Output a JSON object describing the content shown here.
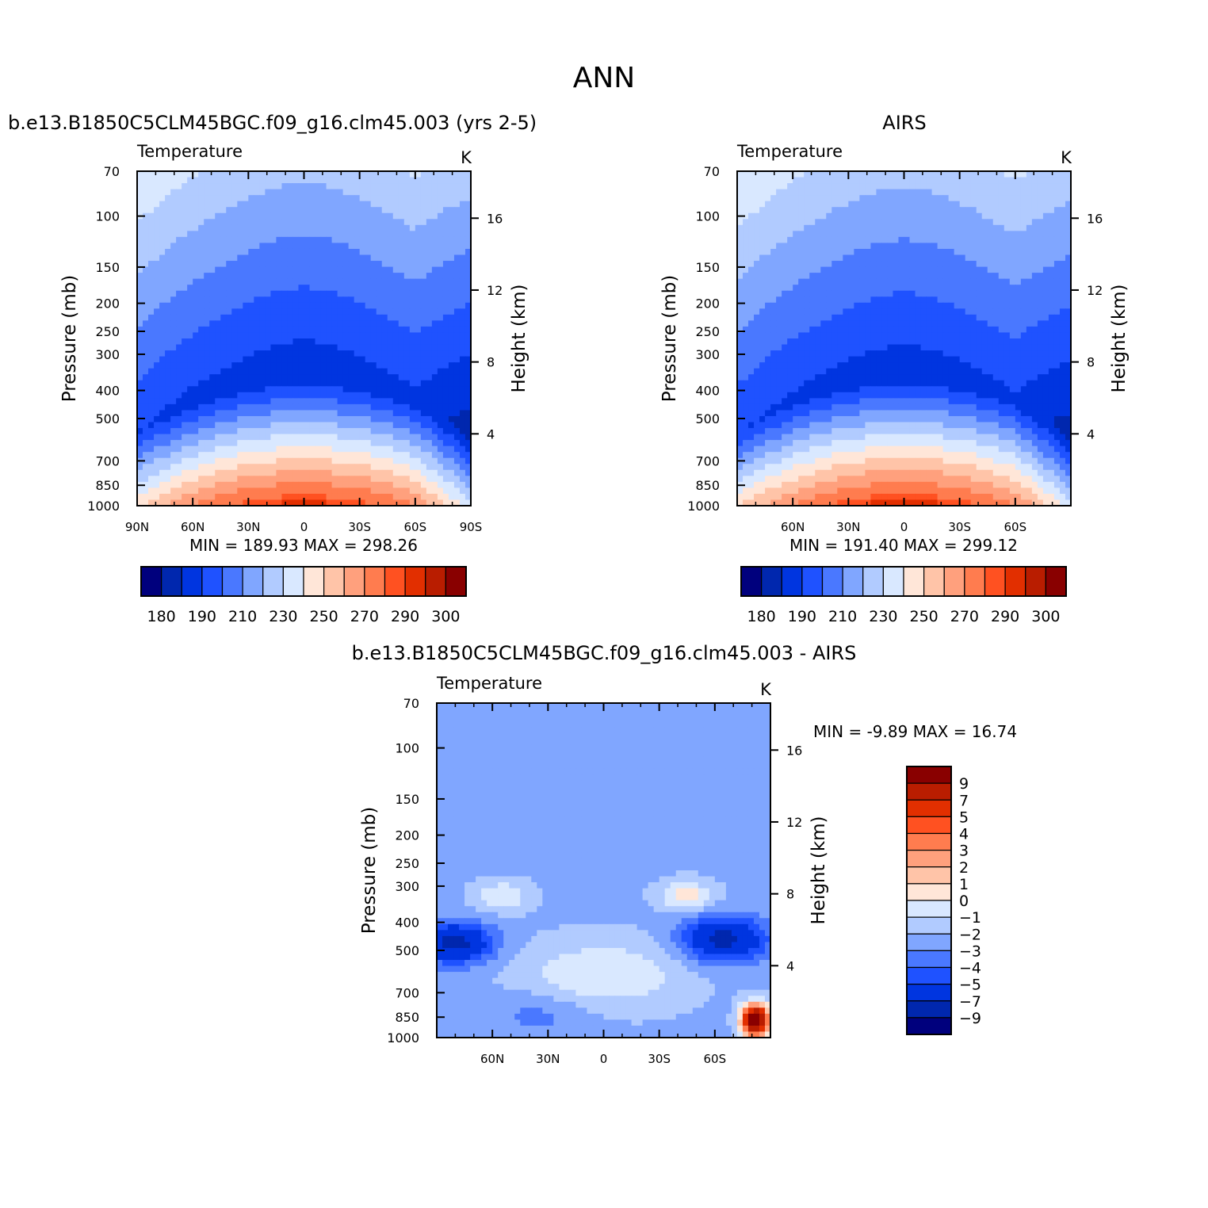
{
  "page_title": "ANN",
  "colors": {
    "abs": [
      "#00007d",
      "#0027ae",
      "#0035e0",
      "#1f52ff",
      "#4a78ff",
      "#80a6ff",
      "#b1cbff",
      "#d9e8ff",
      "#ffe6d8",
      "#ffc4a8",
      "#ffa07d",
      "#ff7c4f",
      "#ff5121",
      "#e22f00",
      "#b91d00",
      "#890000"
    ],
    "diff": [
      "#00007d",
      "#0027ae",
      "#0035e0",
      "#1f52ff",
      "#4a78ff",
      "#80a6ff",
      "#b1cbff",
      "#d9e8ff",
      "#ffe6d8",
      "#ffc4a8",
      "#ffa07d",
      "#ff7c4f",
      "#ff5121",
      "#e22f00",
      "#b91d00",
      "#890000"
    ]
  },
  "chart_data": [
    {
      "type": "heatmap",
      "title": "b.e13.B1850C5CLM45BGC.f09_g16.clm45.003 (yrs 2-5)",
      "variable": "Temperature",
      "units": "K",
      "ylabel": "Pressure (mb)",
      "ylabel_right": "Height (km)",
      "pressure_ticks": [
        70,
        100,
        150,
        200,
        250,
        300,
        400,
        500,
        700,
        850,
        1000
      ],
      "height_ticks": [
        16,
        12,
        8,
        4
      ],
      "lat_ticks": [
        "90N",
        "60N",
        "30N",
        "0",
        "30S",
        "60S",
        "90S"
      ],
      "lat_range": [
        90,
        -90
      ],
      "min_label": "MIN = 189.93",
      "max_label": "MAX = 298.26",
      "colorbar_labels": [
        "180",
        "190",
        "210",
        "230",
        "250",
        "270",
        "290",
        "300"
      ],
      "field": {
        "surface_temp": 298.26,
        "tropopause_temp": 189.93,
        "polar_south_surface": 250
      }
    },
    {
      "type": "heatmap",
      "title": "AIRS",
      "variable": "Temperature",
      "units": "K",
      "ylabel": "Pressure (mb)",
      "ylabel_right": "Height (km)",
      "pressure_ticks": [
        70,
        100,
        150,
        200,
        250,
        300,
        400,
        500,
        700,
        850,
        1000
      ],
      "height_ticks": [
        16,
        12,
        8,
        4
      ],
      "lat_ticks": [
        "60N",
        "30N",
        "0",
        "30S",
        "60S"
      ],
      "lat_range": [
        90,
        -90
      ],
      "min_label": "MIN = 191.40",
      "max_label": "MAX = 299.12",
      "colorbar_labels": [
        "180",
        "190",
        "210",
        "230",
        "250",
        "270",
        "290",
        "300"
      ],
      "field": {
        "surface_temp": 299.12,
        "tropopause_temp": 191.4,
        "polar_south_surface": 252
      }
    },
    {
      "type": "heatmap",
      "title": "b.e13.B1850C5CLM45BGC.f09_g16.clm45.003 - AIRS",
      "variable": "Temperature",
      "units": "K",
      "ylabel": "Pressure (mb)",
      "ylabel_right": "Height (km)",
      "pressure_ticks": [
        70,
        100,
        150,
        200,
        250,
        300,
        400,
        500,
        700,
        850,
        1000
      ],
      "height_ticks": [
        16,
        12,
        8,
        4
      ],
      "lat_ticks": [
        "60N",
        "30N",
        "0",
        "30S",
        "60S"
      ],
      "lat_range": [
        90,
        -90
      ],
      "min_label": "MIN =   -9.89",
      "max_label": "MAX =   16.74",
      "colorbar_labels": [
        "9",
        "7",
        "5",
        "4",
        "3",
        "2",
        "1",
        "0",
        "−1",
        "−2",
        "−3",
        "−4",
        "−5",
        "−7",
        "−9"
      ],
      "field": {
        "min": -9.89,
        "max": 16.74
      }
    }
  ]
}
